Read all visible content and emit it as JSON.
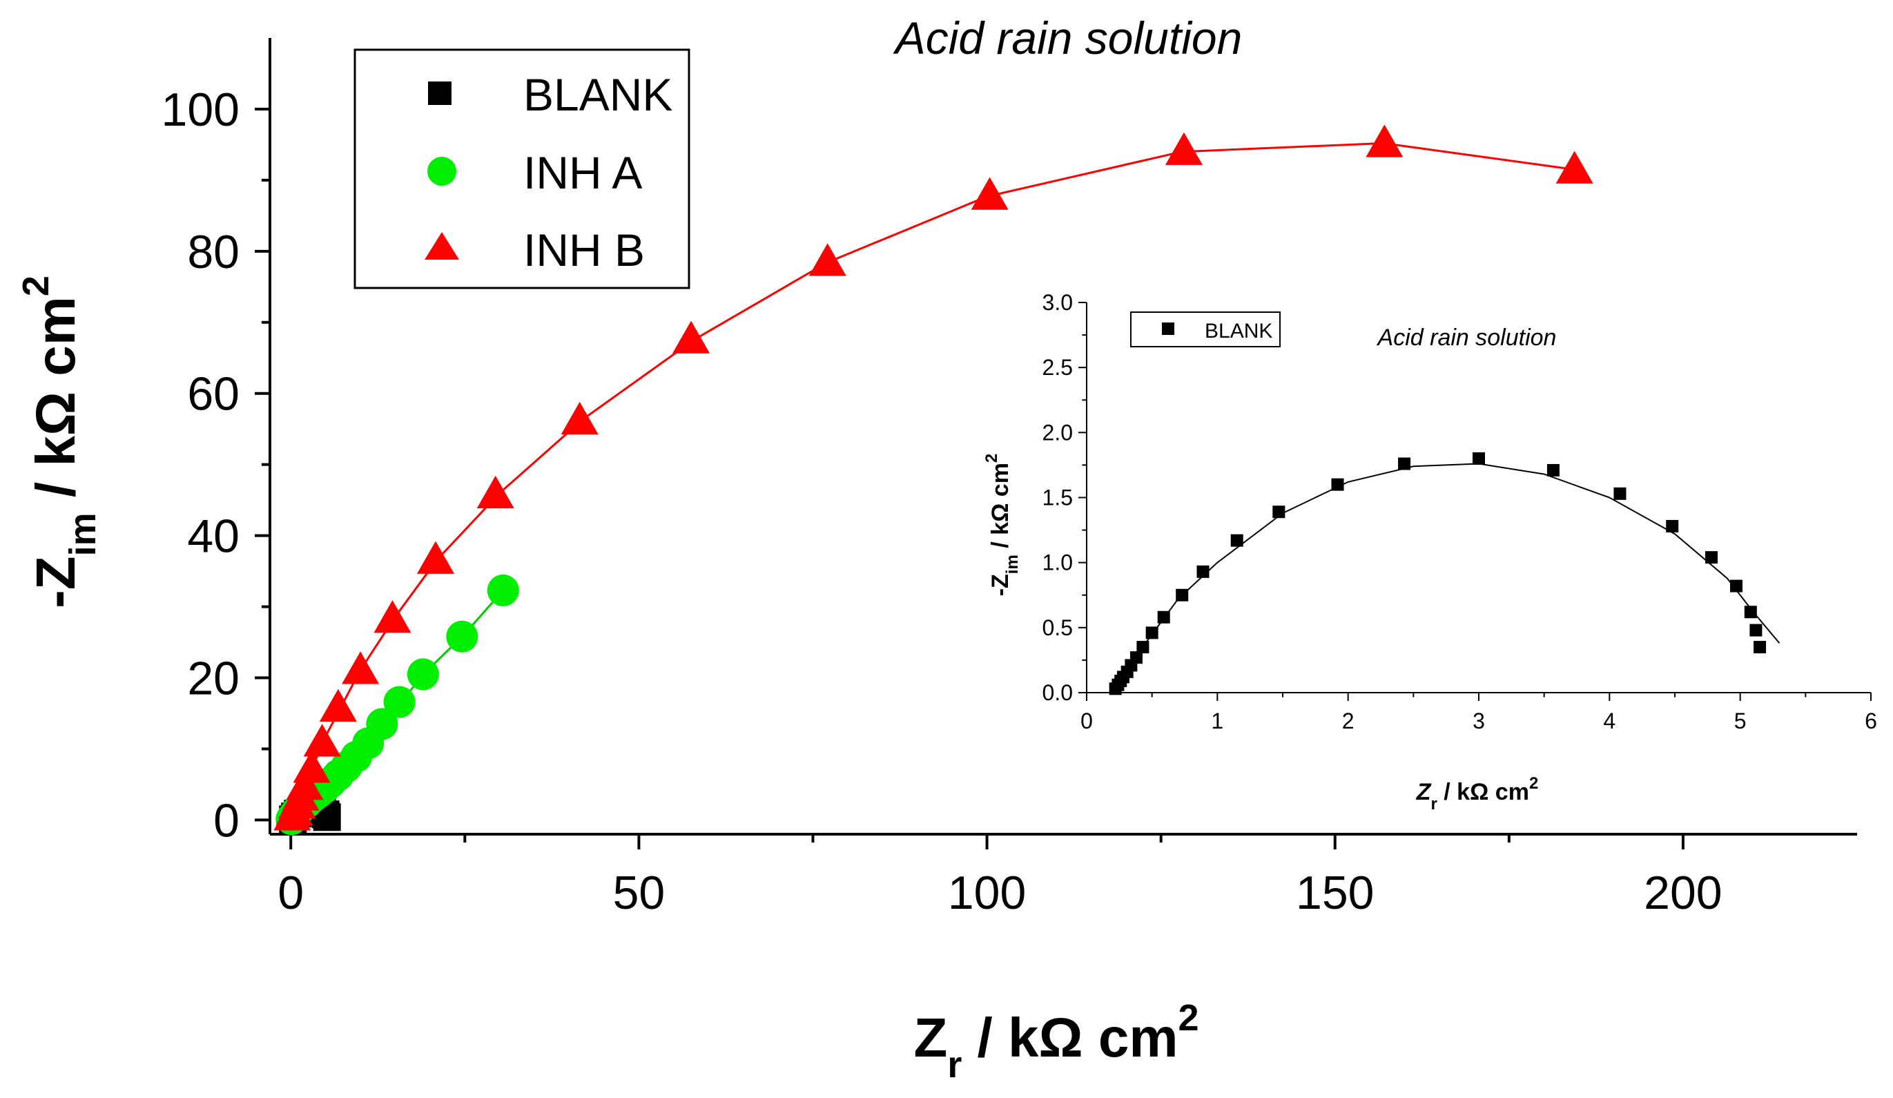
{
  "chart_data": [
    {
      "type": "scatter",
      "title": "Acid rain solution",
      "xlabel": {
        "main": "Z",
        "sub": "r",
        "unit": " / kΩ cm",
        "sup": "2"
      },
      "ylabel": {
        "main": "-Z",
        "sub": "im",
        "unit": " / kΩ cm",
        "sup": "2"
      },
      "xlim": [
        -3,
        225
      ],
      "ylim": [
        -2,
        110
      ],
      "xticks": [
        0,
        50,
        100,
        150,
        200
      ],
      "yticks": [
        0,
        20,
        40,
        60,
        80,
        100
      ],
      "xtick_labels": [
        "0",
        "50",
        "100",
        "150",
        "200"
      ],
      "ytick_labels": [
        "0",
        "20",
        "40",
        "60",
        "80",
        "100"
      ],
      "legend_position": "top-left",
      "series": [
        {
          "name": "BLANK",
          "marker": "square",
          "color": "#000000",
          "x": [
            0.3,
            0.6,
            1.0,
            1.5,
            2.0,
            2.5,
            3.0,
            3.5,
            4.0,
            4.5,
            5.0,
            5.2
          ],
          "y": [
            0.1,
            0.5,
            0.9,
            1.2,
            1.5,
            1.7,
            1.8,
            1.7,
            1.5,
            1.2,
            0.8,
            0.4
          ],
          "fit": []
        },
        {
          "name": "INH A",
          "marker": "circle",
          "color": "#00ee00",
          "x": [
            0.1,
            0.3,
            0.6,
            0.9,
            1.3,
            1.7,
            2.2,
            2.7,
            3.3,
            4.0,
            4.8,
            5.7,
            6.8,
            8.0,
            9.4,
            11.1,
            13.1,
            15.6,
            19.0,
            24.6,
            30.5
          ],
          "y": [
            0.1,
            0.4,
            0.8,
            1.2,
            1.6,
            2.0,
            2.4,
            2.9,
            3.4,
            3.9,
            4.5,
            5.3,
            6.3,
            7.5,
            8.9,
            10.8,
            13.5,
            16.6,
            20.5,
            25.8,
            32.3
          ],
          "fit": [
            [
              0,
              0
            ],
            [
              2,
              2.2
            ],
            [
              5,
              4.6
            ],
            [
              8,
              7.5
            ],
            [
              12,
              11.8
            ],
            [
              16,
              16.9
            ],
            [
              20,
              21.4
            ],
            [
              25,
              26.2
            ],
            [
              30.5,
              32.3
            ]
          ]
        },
        {
          "name": "INH B",
          "marker": "triangle",
          "color": "#ff0000",
          "x": [
            0.2,
            0.5,
            0.9,
            1.4,
            2.0,
            3.0,
            4.5,
            6.8,
            10.0,
            14.6,
            20.8,
            29.4,
            41.5,
            57.5,
            77.1,
            100.4,
            128.3,
            157.1,
            184.4
          ],
          "y": [
            0.5,
            1.2,
            2.2,
            3.3,
            4.8,
            7.2,
            10.9,
            15.8,
            21.1,
            28.3,
            36.6,
            45.8,
            56.2,
            67.6,
            78.5,
            87.8,
            94.1,
            95.2,
            91.5
          ],
          "fit": [
            [
              0,
              0
            ],
            [
              2,
              4.8
            ],
            [
              5,
              11.8
            ],
            [
              10,
              21.1
            ],
            [
              15,
              28.6
            ],
            [
              21,
              36.6
            ],
            [
              30,
              46.0
            ],
            [
              42,
              56.4
            ],
            [
              58,
              67.6
            ],
            [
              77,
              78.4
            ],
            [
              100,
              87.7
            ],
            [
              128,
              94.0
            ],
            [
              157,
              95.2
            ],
            [
              184.4,
              91.5
            ]
          ]
        }
      ]
    },
    {
      "type": "scatter",
      "title": "Acid rain solution",
      "xlabel": {
        "main": "Z",
        "sub": "r",
        "unit": " / kΩ  cm",
        "sup": "2"
      },
      "ylabel": {
        "main": "-Z",
        "sub": "im",
        "unit": " / kΩ cm",
        "sup": "2"
      },
      "xlim": [
        0,
        6
      ],
      "ylim": [
        0,
        3
      ],
      "xticks": [
        0,
        1,
        2,
        3,
        4,
        5,
        6
      ],
      "yticks": [
        0.0,
        0.5,
        1.0,
        1.5,
        2.0,
        2.5,
        3.0
      ],
      "xtick_labels": [
        "0",
        "1",
        "2",
        "3",
        "4",
        "5",
        "6"
      ],
      "ytick_labels": [
        "0.0",
        "0.5",
        "1.0",
        "1.5",
        "2.0",
        "2.5",
        "3.0"
      ],
      "legend_position": "top-left",
      "series": [
        {
          "name": "BLANK",
          "marker": "square",
          "color": "#000000",
          "x": [
            0.22,
            0.24,
            0.26,
            0.28,
            0.31,
            0.34,
            0.38,
            0.43,
            0.5,
            0.59,
            0.73,
            0.89,
            1.15,
            1.47,
            1.92,
            2.43,
            3.0,
            3.57,
            4.08,
            4.48,
            4.78,
            4.97,
            5.08,
            5.12,
            5.15
          ],
          "y": [
            0.03,
            0.06,
            0.09,
            0.12,
            0.16,
            0.21,
            0.27,
            0.35,
            0.46,
            0.58,
            0.75,
            0.93,
            1.17,
            1.39,
            1.6,
            1.76,
            1.8,
            1.71,
            1.53,
            1.28,
            1.04,
            0.82,
            0.62,
            0.48,
            0.35
          ],
          "fit": [
            [
              0.2,
              0.0
            ],
            [
              0.3,
              0.15
            ],
            [
              0.45,
              0.38
            ],
            [
              0.7,
              0.72
            ],
            [
              1.0,
              1.0
            ],
            [
              1.5,
              1.38
            ],
            [
              2.0,
              1.62
            ],
            [
              2.5,
              1.74
            ],
            [
              3.0,
              1.76
            ],
            [
              3.5,
              1.68
            ],
            [
              4.0,
              1.5
            ],
            [
              4.5,
              1.22
            ],
            [
              4.9,
              0.88
            ],
            [
              5.1,
              0.62
            ],
            [
              5.3,
              0.38
            ]
          ]
        }
      ]
    }
  ]
}
